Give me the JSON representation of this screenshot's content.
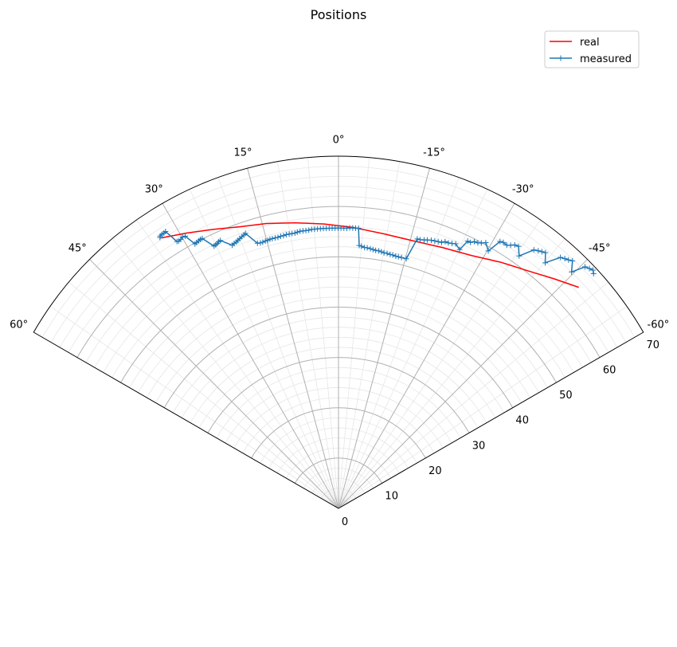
{
  "chart_data": {
    "type": "polar-line",
    "title": "Positions",
    "theta_range_deg": [
      -60,
      60
    ],
    "theta_zero": "north",
    "theta_direction": "counterclockwise",
    "r_range": [
      0,
      70
    ],
    "theta_ticks": [
      -60,
      -45,
      -30,
      -15,
      0,
      15,
      30,
      45,
      60
    ],
    "theta_tick_labels": [
      "-60°",
      "-45°",
      "-30°",
      "-15°",
      "0°",
      "15°",
      "30°",
      "45°",
      "60°"
    ],
    "r_ticks": [
      0,
      10,
      20,
      30,
      40,
      50,
      60,
      70
    ],
    "r_tick_labels": [
      "0",
      "10",
      "20",
      "30",
      "40",
      "50",
      "60",
      "70"
    ],
    "grid": true,
    "minor_grid": true,
    "legend_position": "top-right",
    "series": [
      {
        "name": "real",
        "color": "#ff0000",
        "marker": "none",
        "points": [
          [
            33.3,
            64.3
          ],
          [
            28.9,
            62.5
          ],
          [
            24.2,
            60.8
          ],
          [
            19.3,
            59.3
          ],
          [
            14.2,
            58.4
          ],
          [
            8.6,
            57.4
          ],
          [
            2.9,
            56.6
          ],
          [
            -3.1,
            55.9
          ],
          [
            -9.4,
            55.3
          ],
          [
            -15.5,
            55.2
          ],
          [
            -21.7,
            55.8
          ],
          [
            -27.8,
            56.8
          ],
          [
            -33.4,
            58.6
          ],
          [
            -38.6,
            60.4
          ],
          [
            -43.2,
            62.6
          ],
          [
            -47.4,
            64.9
          ]
        ]
      },
      {
        "name": "measured",
        "color": "#1f77b4",
        "marker": "+",
        "points": [
          [
            33.4,
            64.5
          ],
          [
            33.2,
            64.7
          ],
          [
            32.8,
            64.8
          ],
          [
            32.4,
            64.8
          ],
          [
            32.0,
            64.9
          ],
          [
            31.2,
            62.0
          ],
          [
            30.9,
            61.9
          ],
          [
            30.4,
            62.0
          ],
          [
            29.9,
            62.2
          ],
          [
            29.4,
            62.1
          ],
          [
            28.5,
            59.8
          ],
          [
            28.1,
            59.9
          ],
          [
            27.6,
            60.0
          ],
          [
            27.2,
            60.1
          ],
          [
            26.8,
            60.1
          ],
          [
            25.4,
            57.7
          ],
          [
            25.0,
            57.8
          ],
          [
            24.6,
            57.9
          ],
          [
            24.2,
            58.1
          ],
          [
            23.8,
            58.2
          ],
          [
            22.0,
            56.4
          ],
          [
            21.5,
            56.6
          ],
          [
            21.0,
            56.7
          ],
          [
            20.6,
            56.9
          ],
          [
            20.1,
            57.1
          ],
          [
            19.6,
            57.3
          ],
          [
            19.1,
            57.5
          ],
          [
            18.7,
            57.7
          ],
          [
            17.0,
            55.1
          ],
          [
            16.4,
            55.0
          ],
          [
            15.9,
            55.0
          ],
          [
            15.3,
            55.1
          ],
          [
            14.8,
            55.1
          ],
          [
            14.3,
            55.2
          ],
          [
            13.8,
            55.2
          ],
          [
            13.2,
            55.2
          ],
          [
            12.6,
            55.2
          ],
          [
            12.0,
            55.3
          ],
          [
            11.4,
            55.3
          ],
          [
            10.8,
            55.4
          ],
          [
            10.2,
            55.4
          ],
          [
            9.6,
            55.4
          ],
          [
            9.0,
            55.4
          ],
          [
            8.5,
            55.5
          ],
          [
            7.9,
            55.6
          ],
          [
            7.3,
            55.6
          ],
          [
            6.7,
            55.6
          ],
          [
            6.1,
            55.6
          ],
          [
            5.5,
            55.7
          ],
          [
            4.9,
            55.7
          ],
          [
            4.3,
            55.7
          ],
          [
            3.7,
            55.7
          ],
          [
            3.1,
            55.7
          ],
          [
            2.5,
            55.7
          ],
          [
            1.9,
            55.7
          ],
          [
            1.3,
            55.7
          ],
          [
            0.7,
            55.7
          ],
          [
            0.1,
            55.7
          ],
          [
            -0.5,
            55.7
          ],
          [
            -1.1,
            55.7
          ],
          [
            -1.7,
            55.7
          ],
          [
            -2.3,
            55.8
          ],
          [
            -2.9,
            55.8
          ],
          [
            -3.5,
            55.8
          ],
          [
            -4.1,
            55.8
          ],
          [
            -4.5,
            52.4
          ],
          [
            -5.0,
            52.3
          ],
          [
            -5.7,
            52.1
          ],
          [
            -6.3,
            52.1
          ],
          [
            -7.0,
            52.0
          ],
          [
            -7.6,
            51.9
          ],
          [
            -8.2,
            51.8
          ],
          [
            -8.9,
            51.8
          ],
          [
            -9.5,
            51.7
          ],
          [
            -10.1,
            51.6
          ],
          [
            -10.8,
            51.6
          ],
          [
            -11.5,
            51.5
          ],
          [
            -12.1,
            51.5
          ],
          [
            -12.8,
            51.4
          ],
          [
            -13.4,
            51.4
          ],
          [
            -14.1,
            51.4
          ],
          [
            -15.2,
            51.4
          ],
          [
            -16.3,
            55.8
          ],
          [
            -16.9,
            55.8
          ],
          [
            -17.7,
            56.0
          ],
          [
            -18.3,
            56.2
          ],
          [
            -19.1,
            56.4
          ],
          [
            -19.8,
            56.5
          ],
          [
            -20.5,
            56.6
          ],
          [
            -21.2,
            56.7
          ],
          [
            -21.8,
            57.1
          ],
          [
            -22.5,
            57.1
          ],
          [
            -23.2,
            57.3
          ],
          [
            -23.9,
            57.5
          ],
          [
            -25.1,
            56.8
          ],
          [
            -25.8,
            59.0
          ],
          [
            -26.4,
            59.0
          ],
          [
            -27.0,
            59.5
          ],
          [
            -27.7,
            59.6
          ],
          [
            -28.3,
            59.9
          ],
          [
            -29.0,
            60.4
          ],
          [
            -30.2,
            59.2
          ],
          [
            -31.2,
            62.0
          ],
          [
            -31.8,
            62.2
          ],
          [
            -32.6,
            62.1
          ],
          [
            -33.2,
            62.5
          ],
          [
            -33.8,
            63.0
          ],
          [
            -34.5,
            63.2
          ],
          [
            -35.6,
            61.7
          ],
          [
            -37.1,
            64.4
          ],
          [
            -37.8,
            64.8
          ],
          [
            -38.4,
            65.1
          ],
          [
            -39.0,
            65.4
          ],
          [
            -40.1,
            63.8
          ],
          [
            -41.5,
            66.6
          ],
          [
            -42.2,
            67.0
          ],
          [
            -42.8,
            67.3
          ],
          [
            -43.4,
            67.7
          ],
          [
            -44.6,
            66.0
          ],
          [
            -45.6,
            68.6
          ],
          [
            -46.3,
            69.0
          ],
          [
            -46.9,
            69.3
          ],
          [
            -47.4,
            68.9
          ]
        ]
      }
    ]
  }
}
